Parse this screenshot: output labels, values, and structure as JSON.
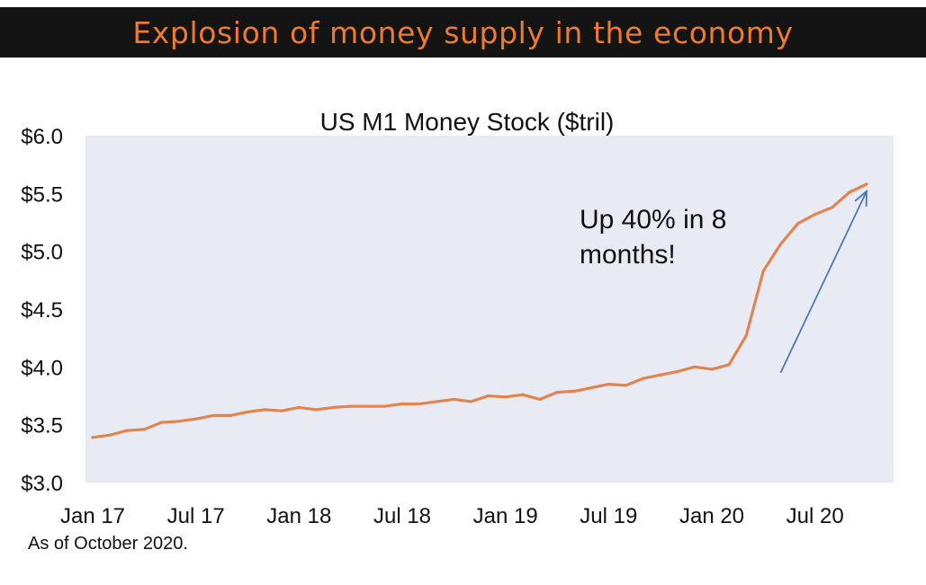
{
  "header": {
    "title": "Explosion of money supply in the economy"
  },
  "footnote": "As of October 2020.",
  "colors": {
    "banner_bg": "#141414",
    "banner_text": "#ee7a2c",
    "plot_bg": "#e9ebf4",
    "series": "#e08550",
    "arrow": "#4a78b5"
  },
  "chart_data": {
    "type": "line",
    "title": "US M1 Money Stock ($tril)",
    "xlabel": "",
    "ylabel": "",
    "ylim": [
      3.0,
      6.0
    ],
    "yticks": [
      3.0,
      3.5,
      4.0,
      4.5,
      5.0,
      5.5,
      6.0
    ],
    "ytick_labels": [
      "$3.0",
      "$3.5",
      "$4.0",
      "$4.5",
      "$5.0",
      "$5.5",
      "$6.0"
    ],
    "xtick_labels": [
      "Jan 17",
      "Jul 17",
      "Jan 18",
      "Jul 18",
      "Jan 19",
      "Jul 19",
      "Jan 20",
      "Jul 20"
    ],
    "xtick_index": [
      0,
      6,
      12,
      18,
      24,
      30,
      36,
      42
    ],
    "grid": false,
    "series": [
      {
        "name": "US M1 Money Stock",
        "x": [
          "Jan 17",
          "Feb 17",
          "Mar 17",
          "Apr 17",
          "May 17",
          "Jun 17",
          "Jul 17",
          "Aug 17",
          "Sep 17",
          "Oct 17",
          "Nov 17",
          "Dec 17",
          "Jan 18",
          "Feb 18",
          "Mar 18",
          "Apr 18",
          "May 18",
          "Jun 18",
          "Jul 18",
          "Aug 18",
          "Sep 18",
          "Oct 18",
          "Nov 18",
          "Dec 18",
          "Jan 19",
          "Feb 19",
          "Mar 19",
          "Apr 19",
          "May 19",
          "Jun 19",
          "Jul 19",
          "Aug 19",
          "Sep 19",
          "Oct 19",
          "Nov 19",
          "Dec 19",
          "Jan 20",
          "Feb 20",
          "Mar 20",
          "Apr 20",
          "May 20",
          "Jun 20",
          "Jul 20",
          "Aug 20",
          "Sep 20",
          "Oct 20"
        ],
        "values": [
          3.39,
          3.41,
          3.45,
          3.46,
          3.52,
          3.53,
          3.55,
          3.58,
          3.58,
          3.61,
          3.63,
          3.62,
          3.65,
          3.63,
          3.65,
          3.66,
          3.66,
          3.66,
          3.68,
          3.68,
          3.7,
          3.72,
          3.7,
          3.75,
          3.74,
          3.76,
          3.72,
          3.78,
          3.79,
          3.82,
          3.85,
          3.84,
          3.9,
          3.93,
          3.96,
          4.0,
          3.98,
          4.02,
          4.27,
          4.83,
          5.06,
          5.24,
          5.32,
          5.38,
          5.51,
          5.58
        ]
      }
    ],
    "annotation": {
      "text_line1": "Up 40% in 8",
      "text_line2": "months!",
      "arrow_from_index": 40,
      "arrow_from_value": 3.95,
      "arrow_to_index": 45,
      "arrow_to_value": 5.52
    }
  }
}
